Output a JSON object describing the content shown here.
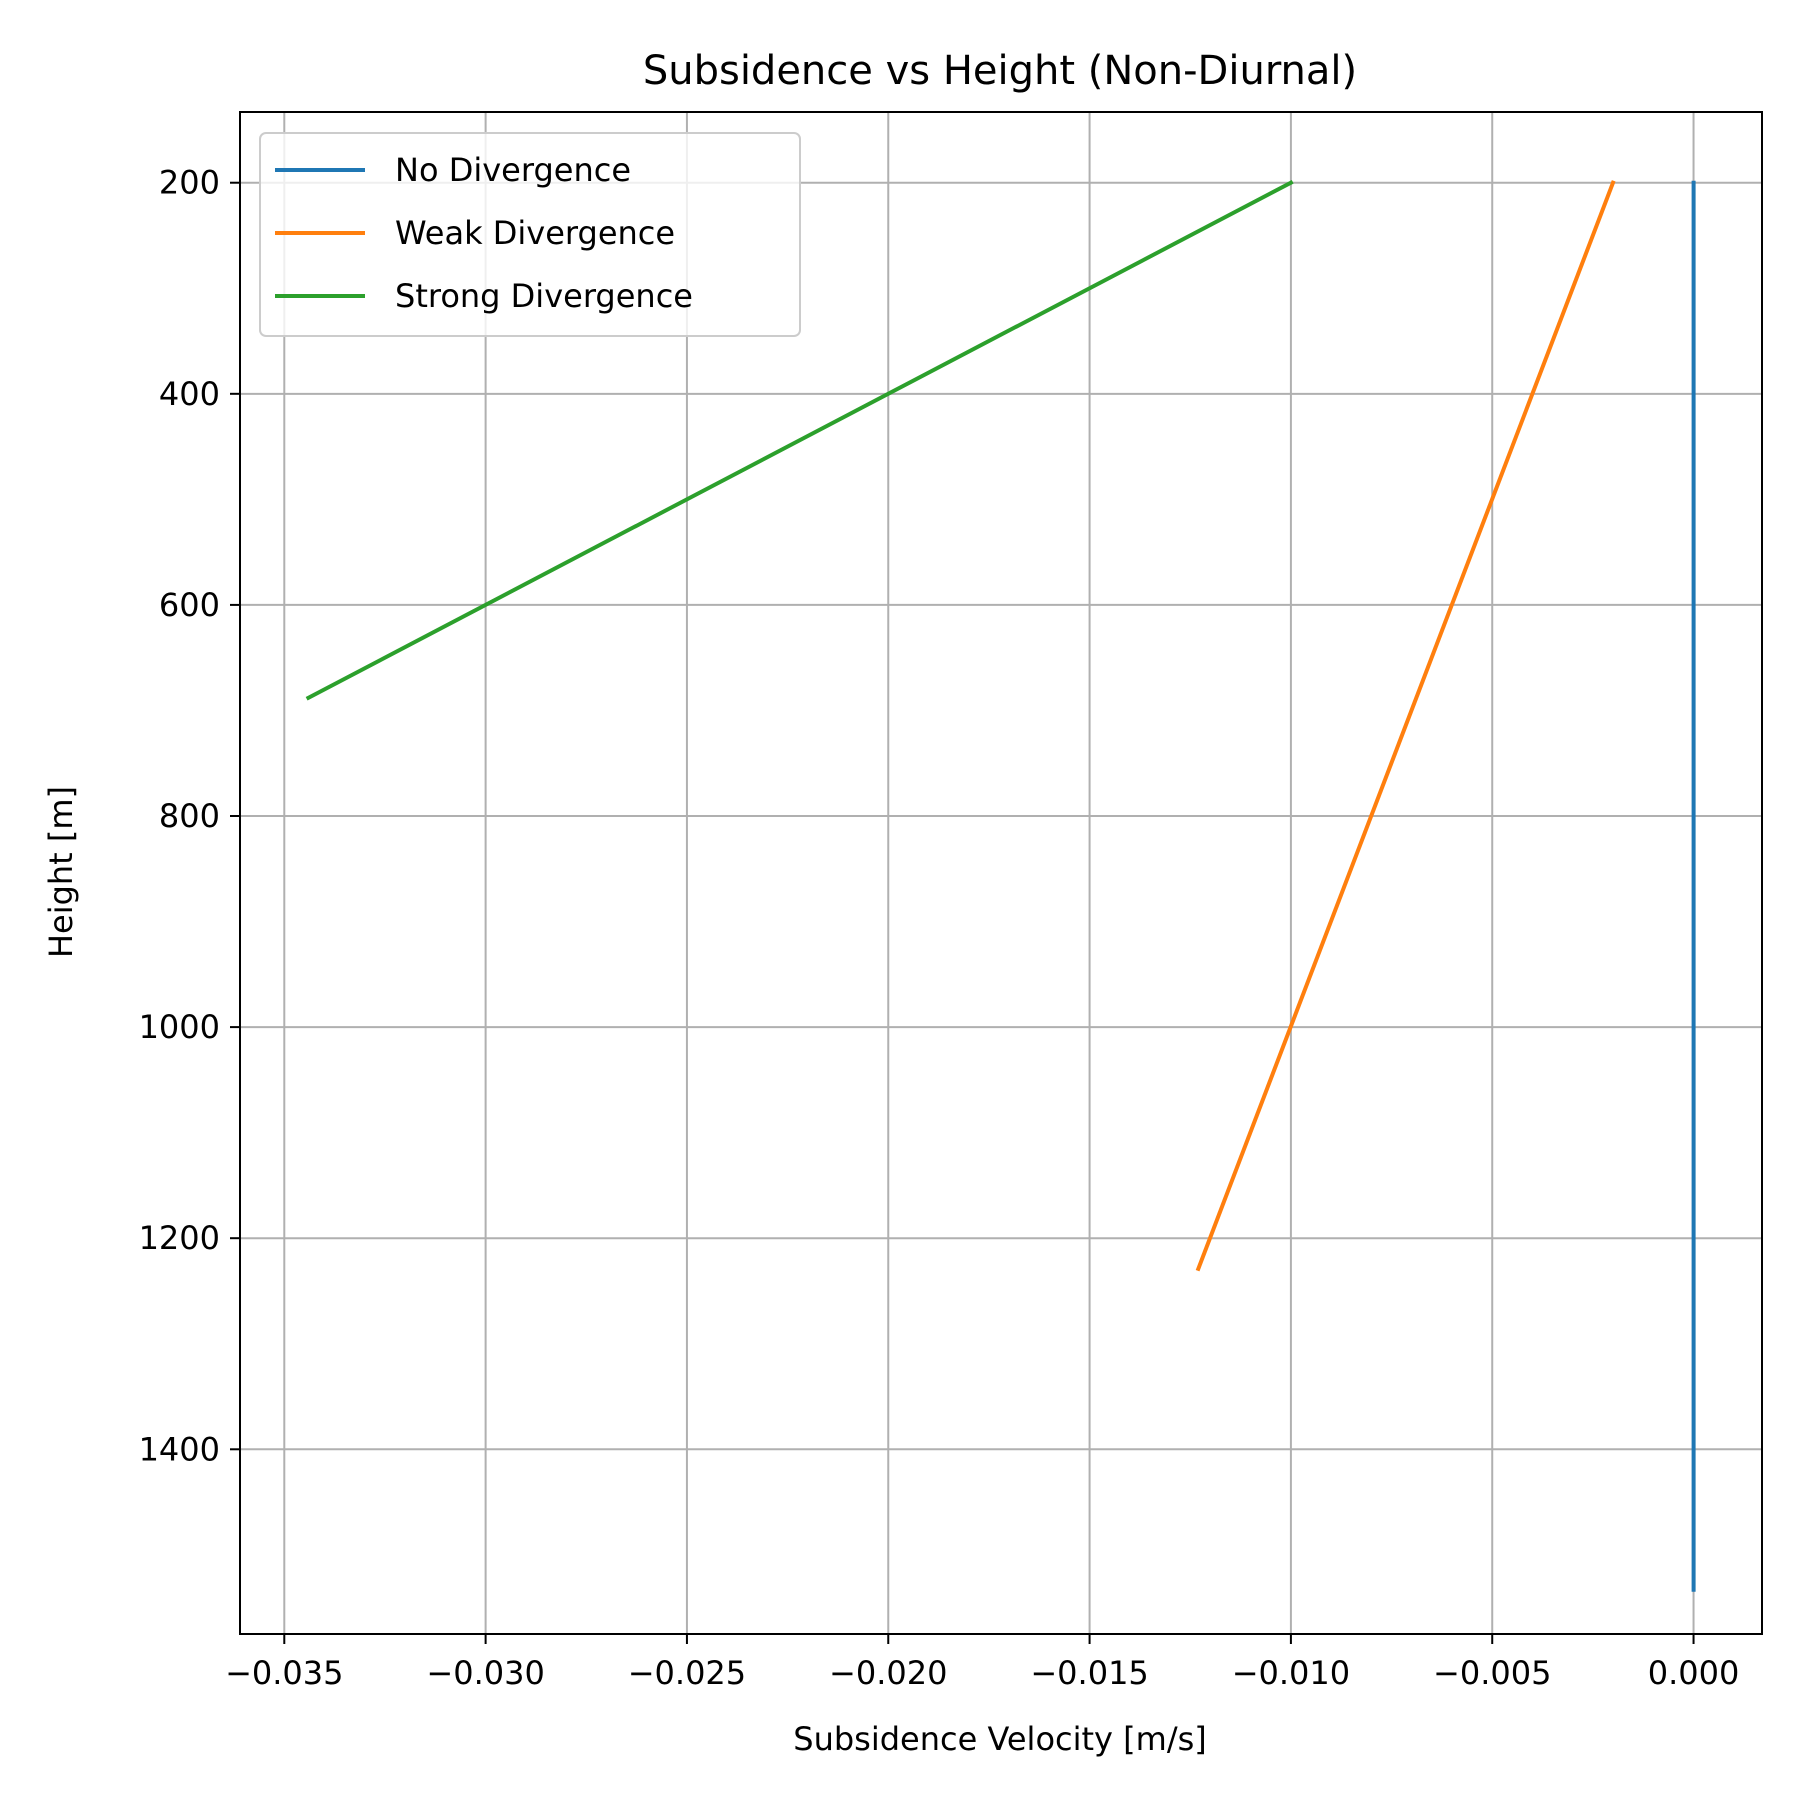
{
  "chart_data": {
    "type": "line",
    "title": "Subsidence vs Height (Non-Diurnal)",
    "xlabel": "Subsidence Velocity [m/s]",
    "ylabel": "Height [m]",
    "xlim": [
      -0.0361,
      0.0017
    ],
    "ylim": [
      1575,
      133
    ],
    "y_inverted": true,
    "grid": true,
    "legend_position": "upper-left",
    "xticks": [
      -0.035,
      -0.03,
      -0.025,
      -0.02,
      -0.015,
      -0.01,
      -0.005,
      0.0
    ],
    "xtick_labels": [
      "−0.035",
      "−0.030",
      "−0.025",
      "−0.020",
      "−0.015",
      "−0.010",
      "−0.005",
      "0.000"
    ],
    "yticks": [
      200,
      400,
      600,
      800,
      1000,
      1200,
      1400
    ],
    "ytick_labels": [
      "200",
      "400",
      "600",
      "800",
      "1000",
      "1200",
      "1400"
    ],
    "series": [
      {
        "name": "No Divergence",
        "color": "#1f77b4",
        "x": [
          0.0,
          0.0
        ],
        "y": [
          200,
          1533
        ]
      },
      {
        "name": "Weak Divergence",
        "color": "#ff7f0e",
        "x": [
          -0.002,
          -0.0123
        ],
        "y": [
          200,
          1229
        ]
      },
      {
        "name": "Strong Divergence",
        "color": "#2ca02c",
        "x": [
          -0.01,
          -0.0344
        ],
        "y": [
          200,
          688
        ]
      }
    ]
  }
}
